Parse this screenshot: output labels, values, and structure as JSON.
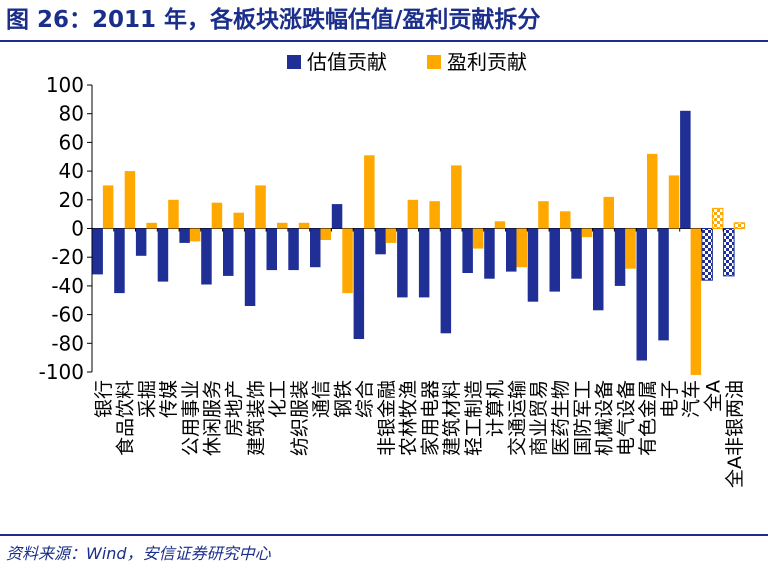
{
  "title": "图 26：2011 年，各板块涨跌幅估值/盈利贡献拆分",
  "source": "资料来源：Wind，安信证券研究中心",
  "colors": {
    "valuation": "#1f2f96",
    "earnings": "#ffa800",
    "header": "#1b2f8a",
    "axis": "#000000"
  },
  "chart_data": {
    "type": "bar",
    "title": "",
    "xlabel": "",
    "ylabel": "",
    "ylim": [
      -100,
      100
    ],
    "yticks": [
      100,
      80,
      60,
      40,
      20,
      0,
      -20,
      -40,
      -60,
      -80,
      -100
    ],
    "legend": {
      "placement": "top-center"
    },
    "grid": false,
    "categories": [
      "银行",
      "食品饮料",
      "采掘",
      "传媒",
      "公用事业",
      "休闲服务",
      "房地产",
      "建筑装饰",
      "化工",
      "纺织服装",
      "通信",
      "钢铁",
      "综合",
      "非银金融",
      "农林牧渔",
      "家用电器",
      "建筑材料",
      "轻工制造",
      "计算机",
      "交通运输",
      "商业贸易",
      "医药生物",
      "国防军工",
      "机械设备",
      "电气设备",
      "有色金属",
      "电子",
      "汽车",
      "全A",
      "全A非银两油"
    ],
    "series": [
      {
        "name": "估值贡献",
        "values": [
          -32,
          -45,
          -19,
          -37,
          -10,
          -39,
          -33,
          -54,
          -29,
          -29,
          -27,
          17,
          -77,
          -18,
          -48,
          -48,
          -73,
          -31,
          -35,
          -30,
          -51,
          -44,
          -35,
          -57,
          -40,
          -92,
          -78,
          82,
          -36,
          -33
        ]
      },
      {
        "name": "盈利贡献",
        "values": [
          30,
          40,
          4,
          20,
          -9,
          18,
          11,
          30,
          4,
          4,
          -8,
          -45,
          51,
          -10,
          20,
          19,
          44,
          -14,
          5,
          -27,
          19,
          12,
          -6,
          22,
          -28,
          52,
          37,
          -102,
          14,
          4
        ]
      }
    ],
    "hatched_categories": [
      "全A",
      "全A非银两油"
    ]
  }
}
